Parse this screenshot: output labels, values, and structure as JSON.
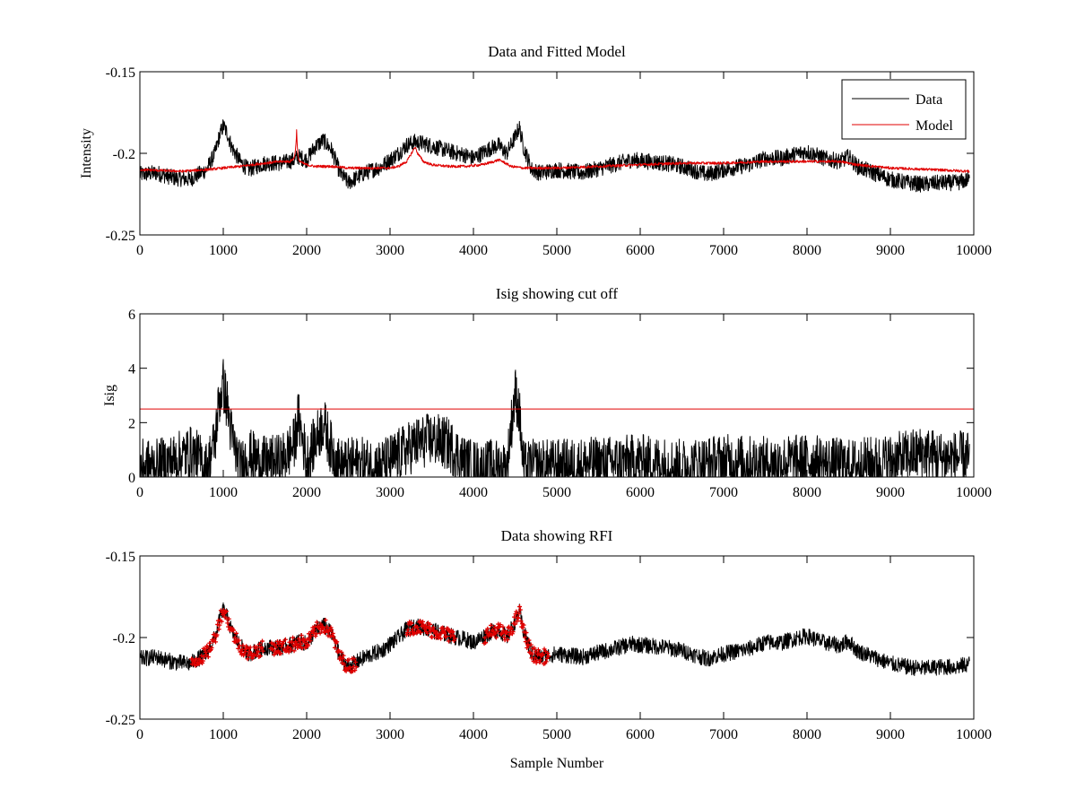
{
  "chart_data": [
    {
      "id": "p1",
      "type": "line",
      "title": "Data and Fitted Model",
      "xlabel": "",
      "ylabel": "Intensity",
      "xlim": [
        0,
        10000
      ],
      "ylim": [
        -0.25,
        -0.15
      ],
      "xticks": [
        0,
        1000,
        2000,
        3000,
        4000,
        5000,
        6000,
        7000,
        8000,
        9000,
        10000
      ],
      "yticks": [
        -0.25,
        -0.2,
        -0.15
      ],
      "ytick_labels": [
        "-0.25",
        "-0.2",
        "-0.15"
      ],
      "grid": false,
      "legend": {
        "position": "top-right",
        "entries": [
          "Data",
          "Model"
        ]
      },
      "series": [
        {
          "name": "Data",
          "color": "#000000",
          "noise": 0.005,
          "x": [
            0,
            200,
            400,
            600,
            800,
            900,
            950,
            1000,
            1050,
            1100,
            1200,
            1300,
            1500,
            1700,
            1850,
            1900,
            2000,
            2100,
            2200,
            2300,
            2400,
            2500,
            2700,
            2900,
            3100,
            3200,
            3300,
            3400,
            3600,
            3800,
            3900,
            4000,
            4100,
            4200,
            4300,
            4400,
            4500,
            4550,
            4600,
            4700,
            4800,
            5000,
            5300,
            5600,
            5900,
            6100,
            6300,
            6500,
            6800,
            7000,
            7300,
            7500,
            7700,
            7900,
            8000,
            8200,
            8400,
            8500,
            8600,
            8800,
            9000,
            9200,
            9400,
            9600,
            9800,
            9950
          ],
          "y": [
            -0.213,
            -0.212,
            -0.215,
            -0.216,
            -0.21,
            -0.2,
            -0.19,
            -0.183,
            -0.188,
            -0.196,
            -0.205,
            -0.21,
            -0.206,
            -0.206,
            -0.204,
            -0.202,
            -0.204,
            -0.196,
            -0.192,
            -0.198,
            -0.212,
            -0.218,
            -0.212,
            -0.208,
            -0.2,
            -0.195,
            -0.193,
            -0.194,
            -0.197,
            -0.2,
            -0.201,
            -0.203,
            -0.2,
            -0.197,
            -0.195,
            -0.2,
            -0.19,
            -0.184,
            -0.196,
            -0.21,
            -0.212,
            -0.21,
            -0.212,
            -0.208,
            -0.204,
            -0.205,
            -0.206,
            -0.208,
            -0.213,
            -0.21,
            -0.207,
            -0.203,
            -0.203,
            -0.2,
            -0.199,
            -0.203,
            -0.205,
            -0.202,
            -0.208,
            -0.212,
            -0.216,
            -0.218,
            -0.219,
            -0.218,
            -0.218,
            -0.216
          ]
        },
        {
          "name": "Model",
          "color": "#e00000",
          "noise": 0.0008,
          "x": [
            0,
            500,
            800,
            1000,
            1200,
            1500,
            1700,
            1800,
            1850,
            1870,
            1880,
            1890,
            1900,
            1950,
            2000,
            2100,
            2300,
            2500,
            2800,
            3000,
            3100,
            3200,
            3280,
            3300,
            3330,
            3400,
            3500,
            3700,
            3900,
            4100,
            4250,
            4300,
            4350,
            4450,
            4600,
            5000,
            5500,
            6000,
            6500,
            7000,
            7500,
            8000,
            8400,
            8500,
            8600,
            9000,
            9500,
            9950
          ],
          "y": [
            -0.21,
            -0.211,
            -0.21,
            -0.209,
            -0.208,
            -0.206,
            -0.205,
            -0.205,
            -0.203,
            -0.196,
            -0.186,
            -0.198,
            -0.204,
            -0.206,
            -0.207,
            -0.208,
            -0.208,
            -0.209,
            -0.209,
            -0.209,
            -0.208,
            -0.205,
            -0.198,
            -0.196,
            -0.2,
            -0.205,
            -0.207,
            -0.208,
            -0.208,
            -0.207,
            -0.205,
            -0.204,
            -0.205,
            -0.208,
            -0.209,
            -0.209,
            -0.208,
            -0.207,
            -0.206,
            -0.206,
            -0.205,
            -0.205,
            -0.205,
            -0.206,
            -0.207,
            -0.209,
            -0.21,
            -0.211
          ]
        }
      ]
    },
    {
      "id": "p2",
      "type": "line",
      "title": "Isig showing cut off",
      "xlabel": "",
      "ylabel": "Isig",
      "xlim": [
        0,
        10000
      ],
      "ylim": [
        0,
        6
      ],
      "xticks": [
        0,
        1000,
        2000,
        3000,
        4000,
        5000,
        6000,
        7000,
        8000,
        9000,
        10000
      ],
      "yticks": [
        0,
        2,
        4,
        6
      ],
      "ytick_labels": [
        "0",
        "2",
        "4",
        "6"
      ],
      "grid": false,
      "cutoff": {
        "value": 2.5,
        "color": "#e00000"
      },
      "series": [
        {
          "name": "Isig",
          "color": "#000000",
          "noise": 1.0,
          "x": [
            0,
            200,
            400,
            600,
            700,
            800,
            900,
            950,
            1000,
            1050,
            1100,
            1200,
            1300,
            1500,
            1700,
            1850,
            1900,
            2000,
            2100,
            2200,
            2300,
            2400,
            2600,
            2900,
            3100,
            3300,
            3500,
            3700,
            3900,
            4000,
            4100,
            4200,
            4300,
            4400,
            4450,
            4500,
            4550,
            4600,
            4700,
            5000,
            5500,
            6000,
            6500,
            7000,
            7500,
            8000,
            8500,
            9000,
            9400,
            9600,
            9950
          ],
          "y": [
            0.4,
            0.4,
            0.6,
            0.9,
            0.7,
            0.3,
            1.3,
            2.8,
            3.4,
            2.6,
            1.5,
            0.3,
            0.8,
            0.5,
            0.6,
            1.2,
            2.2,
            0.6,
            1.3,
            2.0,
            1.0,
            0.4,
            0.5,
            0.4,
            0.8,
            1.2,
            1.4,
            1.2,
            0.5,
            0.4,
            0.3,
            0.4,
            0.4,
            0.3,
            1.8,
            3.1,
            2.4,
            0.3,
            0.4,
            0.4,
            0.5,
            0.6,
            0.4,
            0.6,
            0.5,
            0.6,
            0.4,
            0.6,
            0.9,
            0.7,
            0.7
          ]
        }
      ]
    },
    {
      "id": "p3",
      "type": "line",
      "title": "Data showing RFI",
      "xlabel": "Sample Number",
      "ylabel": "",
      "xlim": [
        0,
        10000
      ],
      "ylim": [
        -0.25,
        -0.15
      ],
      "xticks": [
        0,
        1000,
        2000,
        3000,
        4000,
        5000,
        6000,
        7000,
        8000,
        9000,
        10000
      ],
      "yticks": [
        -0.25,
        -0.2,
        -0.15
      ],
      "ytick_labels": [
        "-0.25",
        "-0.2",
        "-0.15"
      ],
      "grid": false,
      "series": [
        {
          "name": "Data",
          "color": "#000000",
          "noise": 0.005,
          "x": [
            0,
            200,
            400,
            600,
            800,
            900,
            950,
            1000,
            1050,
            1100,
            1200,
            1300,
            1500,
            1700,
            1850,
            1900,
            2000,
            2100,
            2200,
            2300,
            2400,
            2500,
            2700,
            2900,
            3100,
            3200,
            3300,
            3400,
            3600,
            3800,
            3900,
            4000,
            4100,
            4200,
            4300,
            4400,
            4500,
            4550,
            4600,
            4700,
            4800,
            5000,
            5300,
            5600,
            5900,
            6100,
            6300,
            6500,
            6800,
            7000,
            7300,
            7500,
            7700,
            7900,
            8000,
            8200,
            8400,
            8500,
            8600,
            8800,
            9000,
            9200,
            9400,
            9600,
            9800,
            9950
          ],
          "y": [
            -0.213,
            -0.212,
            -0.215,
            -0.216,
            -0.21,
            -0.2,
            -0.19,
            -0.183,
            -0.188,
            -0.196,
            -0.205,
            -0.21,
            -0.206,
            -0.206,
            -0.204,
            -0.202,
            -0.204,
            -0.196,
            -0.192,
            -0.198,
            -0.212,
            -0.218,
            -0.212,
            -0.208,
            -0.2,
            -0.195,
            -0.193,
            -0.194,
            -0.197,
            -0.2,
            -0.201,
            -0.203,
            -0.2,
            -0.197,
            -0.195,
            -0.2,
            -0.19,
            -0.184,
            -0.196,
            -0.21,
            -0.212,
            -0.21,
            -0.212,
            -0.208,
            -0.204,
            -0.205,
            -0.206,
            -0.208,
            -0.213,
            -0.21,
            -0.207,
            -0.203,
            -0.203,
            -0.2,
            -0.199,
            -0.203,
            -0.205,
            -0.202,
            -0.208,
            -0.212,
            -0.216,
            -0.218,
            -0.219,
            -0.218,
            -0.218,
            -0.216
          ]
        }
      ],
      "rfi": {
        "color": "#e00000",
        "marker": "+",
        "ranges": [
          [
            620,
            1480
          ],
          [
            1570,
            2600
          ],
          [
            3200,
            3780
          ],
          [
            4130,
            4900
          ]
        ]
      }
    }
  ]
}
